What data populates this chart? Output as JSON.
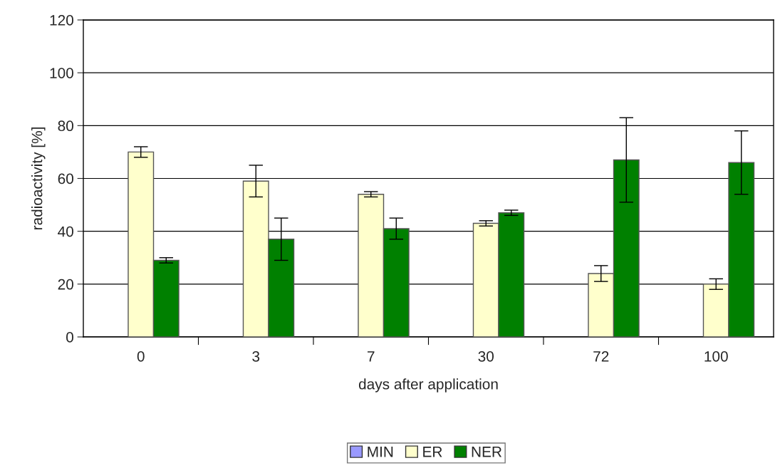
{
  "chart_data": {
    "type": "bar",
    "xlabel": "days after application",
    "ylabel": "radioactivity [%]",
    "categories": [
      "0",
      "3",
      "7",
      "30",
      "72",
      "100"
    ],
    "series": [
      {
        "name": "MIN",
        "color": "#9999ff",
        "values": [
          0,
          0,
          0,
          0,
          0,
          0
        ]
      },
      {
        "name": "ER",
        "color": "#ffffcc",
        "values": [
          70,
          59,
          54,
          43,
          24,
          20
        ],
        "errors": [
          2,
          6,
          1,
          1,
          3,
          2
        ]
      },
      {
        "name": "NER",
        "color": "#008000",
        "values": [
          29,
          37,
          41,
          47,
          67,
          66
        ],
        "errors": [
          1,
          8,
          4,
          1,
          16,
          12
        ]
      }
    ],
    "ylim": [
      0,
      120
    ],
    "yticks": [
      0,
      20,
      40,
      60,
      80,
      100,
      120
    ],
    "grid": "y",
    "legend": "bottom"
  }
}
